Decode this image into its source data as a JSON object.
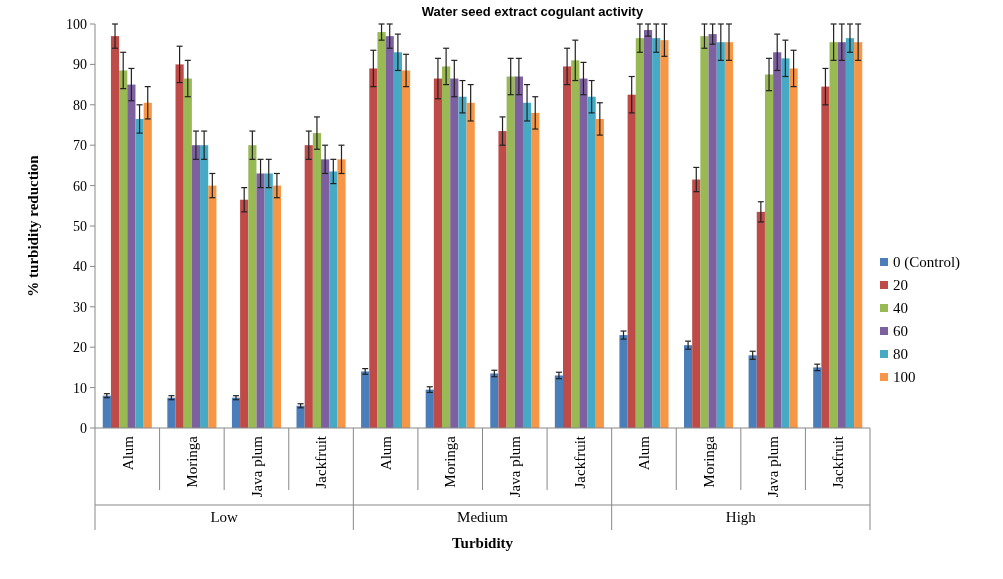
{
  "chart_data": {
    "type": "bar",
    "title": "Water seed extract cogulant activity",
    "xlabel": "Turbidity",
    "ylabel": "% turbidity  reduction",
    "categories": [
      "Alum",
      "Moringa",
      "Java plum",
      "Jackfruit",
      "Alum",
      "Moringa",
      "Java plum",
      "Jackfruit",
      "Alum",
      "Moringa",
      "Java plum",
      "Jackfruit"
    ],
    "annotations": [
      "Low",
      "Medium",
      "High"
    ],
    "series": [
      {
        "name": "0 (Control)",
        "color": "#4a7ebb",
        "values": [
          8,
          7.5,
          7.5,
          5.5,
          14,
          9.5,
          13.5,
          13,
          23,
          20.5,
          18,
          15
        ],
        "errors": [
          0.5,
          0.5,
          0.5,
          0.5,
          0.7,
          0.7,
          0.8,
          0.8,
          1,
          1,
          1,
          0.8
        ]
      },
      {
        "name": "20",
        "color": "#be4b48",
        "values": [
          97,
          90,
          56.5,
          70,
          89,
          86.5,
          73.5,
          89.5,
          82.5,
          61.5,
          53.5,
          84.5
        ],
        "errors": [
          3,
          4.5,
          3,
          3.5,
          4.5,
          5,
          3.5,
          4.5,
          4.5,
          3,
          2.5,
          4.5
        ]
      },
      {
        "name": "40",
        "color": "#98b954",
        "values": [
          88.5,
          86.5,
          70,
          73,
          98,
          89.5,
          87,
          91,
          96.5,
          97,
          87.5,
          95.5
        ],
        "errors": [
          4.5,
          4.5,
          3.5,
          4,
          2,
          4.5,
          4.5,
          5,
          3.5,
          3,
          4,
          4.5
        ]
      },
      {
        "name": "60",
        "color": "#7d60a0",
        "values": [
          85,
          70,
          63,
          66.5,
          97,
          86.5,
          87,
          86.5,
          98.5,
          97.5,
          93,
          95.5
        ],
        "errors": [
          4,
          3.5,
          3.5,
          3.5,
          3,
          4.5,
          4.5,
          4,
          1.5,
          2.5,
          4.5,
          4.5
        ]
      },
      {
        "name": "80",
        "color": "#46aac5",
        "values": [
          76.5,
          70,
          63,
          63.5,
          93,
          82,
          80.5,
          82,
          96.5,
          95.5,
          91.5,
          96.5
        ],
        "errors": [
          3.5,
          3.5,
          3.5,
          3,
          4.5,
          4,
          4.5,
          4,
          3.5,
          4.5,
          4.5,
          3.5
        ]
      },
      {
        "name": "100",
        "color": "#f79646",
        "values": [
          80.5,
          60,
          60,
          66.5,
          88.5,
          80.5,
          78,
          76.5,
          96,
          95.5,
          89,
          95.5
        ],
        "errors": [
          4,
          3,
          3,
          3.5,
          4,
          4.5,
          4,
          4,
          4,
          4.5,
          4.5,
          4.5
        ]
      }
    ],
    "ylim": [
      0,
      100
    ],
    "yticks": [
      0,
      10,
      20,
      30,
      40,
      50,
      60,
      70,
      80,
      90,
      100
    ],
    "grid": false,
    "legend": "right"
  }
}
